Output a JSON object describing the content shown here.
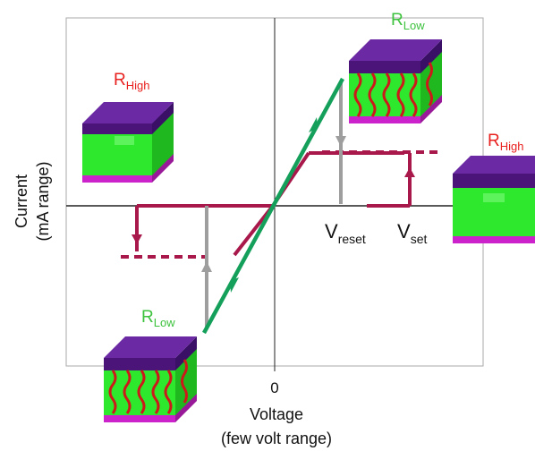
{
  "axes": {
    "y_label_line1": "Current",
    "y_label_line2": "(mA range)",
    "x_label_line1": "Voltage",
    "x_label_line2": "(few volt range)",
    "origin_tick": "0"
  },
  "labels": {
    "r_high_left": {
      "main": "R",
      "sub": "High"
    },
    "r_low_top": {
      "main": "R",
      "sub": "Low"
    },
    "r_high_right": {
      "main": "R",
      "sub": "High"
    },
    "r_low_bottom": {
      "main": "R",
      "sub": "Low"
    },
    "v_reset": {
      "main": "V",
      "sub": "reset"
    },
    "v_set": {
      "main": "V",
      "sub": "set"
    }
  },
  "colors": {
    "high_state_label": "#e8201e",
    "low_state_label": "#3cc23c",
    "low_line": "#14a05a",
    "high_line": "#a8184a",
    "transition_line": "#9e9e9e",
    "cell_top": "#5a1f8c",
    "cell_side": "#3a0f66",
    "cell_body": "#2ee82e",
    "cell_base": "#cc22cc",
    "filament": "#cc1a1a"
  }
}
